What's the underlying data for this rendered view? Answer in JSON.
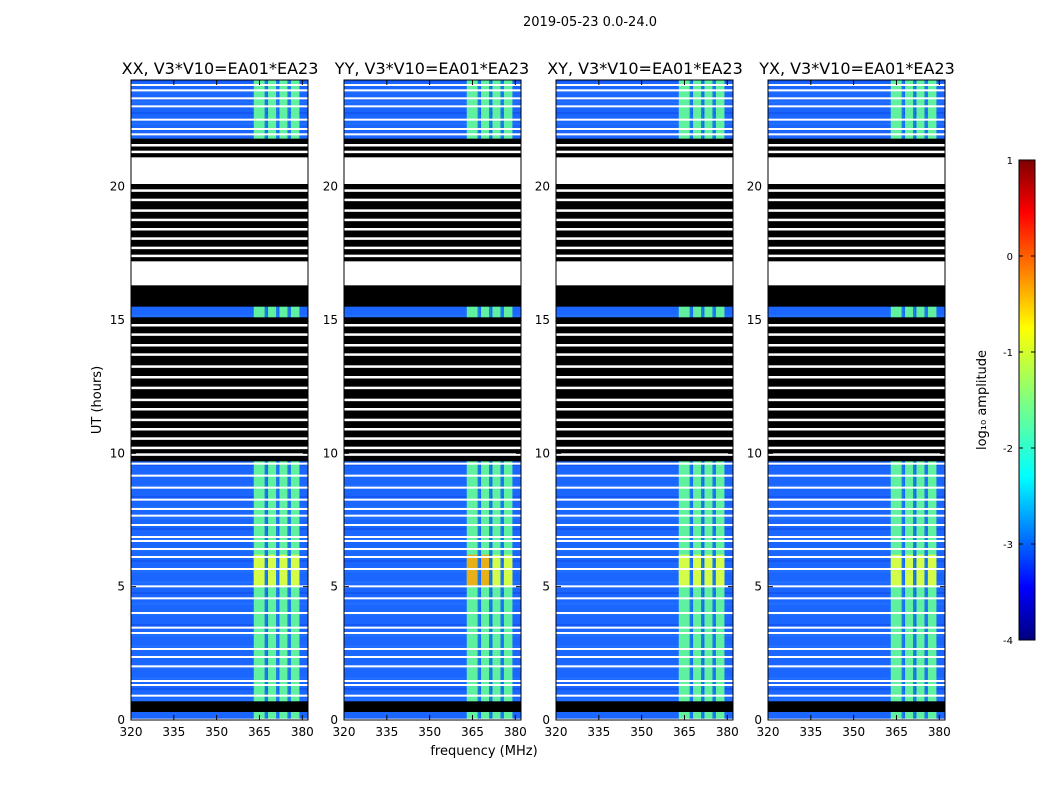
{
  "chart_data": {
    "type": "heatmap",
    "suptitle": "2019-05-23 0.0-24.0",
    "xlabel": "frequency (MHz)",
    "ylabel": "UT (hours)",
    "xlim": [
      320,
      382
    ],
    "ylim": [
      0,
      24
    ],
    "xticks": [
      320,
      335,
      350,
      365,
      380
    ],
    "yticks": [
      0,
      5,
      10,
      15,
      20
    ],
    "panels": [
      {
        "title": "XX, V3*V10=EA01*EA23"
      },
      {
        "title": "YY, V3*V10=EA01*EA23"
      },
      {
        "title": "XY, V3*V10=EA01*EA23"
      },
      {
        "title": "YX, V3*V10=EA01*EA23"
      }
    ],
    "colorbar": {
      "label": "log₁₀ amplitude",
      "range": [
        -4,
        1
      ],
      "ticks": [
        1,
        0,
        -1,
        -2,
        -3,
        -4
      ],
      "colormap": "jet"
    },
    "bright_channels_mhz": [
      [
        363,
        367
      ],
      [
        368,
        371
      ],
      [
        372,
        375
      ],
      [
        376,
        379
      ]
    ],
    "no_data_hours": [
      [
        0.3,
        0.7
      ],
      [
        9.7,
        15.1
      ],
      [
        15.5,
        21.8
      ]
    ],
    "blank_hours": [
      [
        16.3,
        17.2
      ],
      [
        20.1,
        21.1
      ]
    ]
  }
}
